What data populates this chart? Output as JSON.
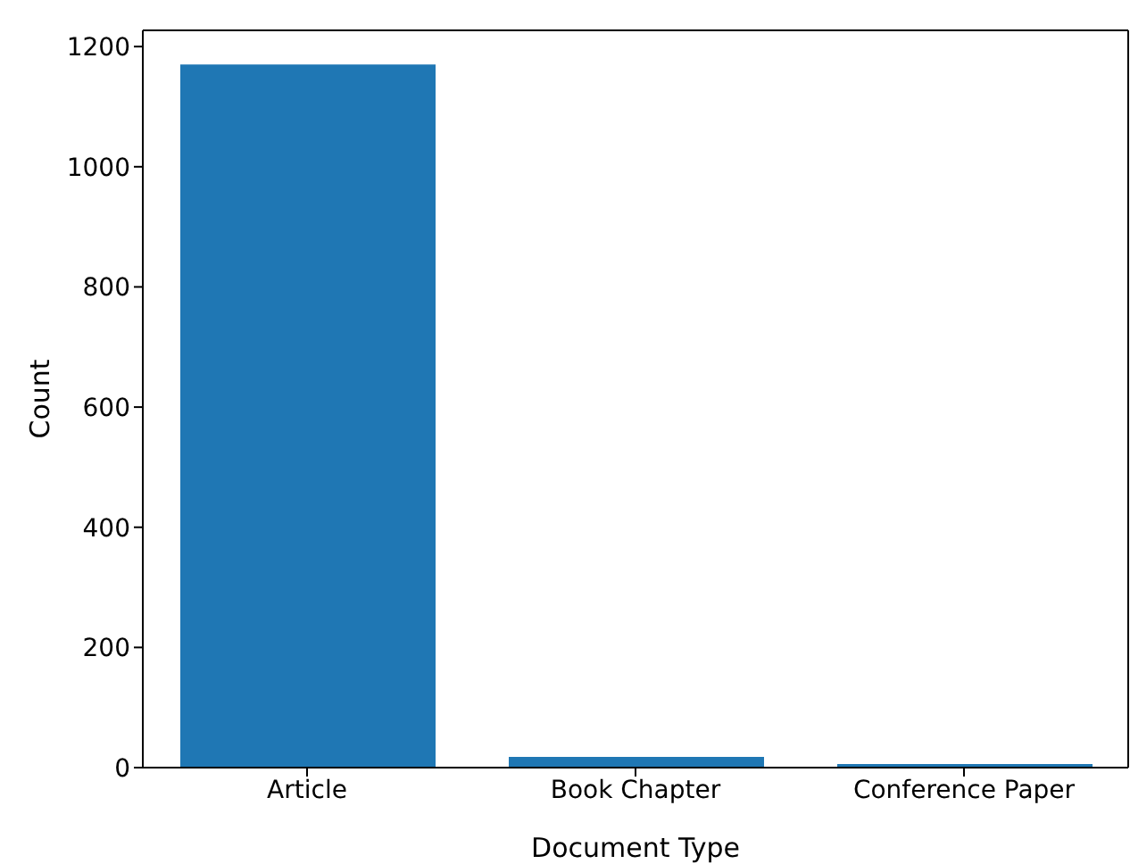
{
  "chart_data": {
    "type": "bar",
    "xlabel": "Document Type",
    "ylabel": "Count",
    "categories": [
      "Article",
      "Book Chapter",
      "Conference Paper"
    ],
    "values": [
      1170,
      18,
      6
    ],
    "color": "#1f77b4",
    "ylim": [
      0,
      1227
    ],
    "yticks": [
      0,
      200,
      400,
      600,
      800,
      1000,
      1200
    ],
    "grid": false
  }
}
